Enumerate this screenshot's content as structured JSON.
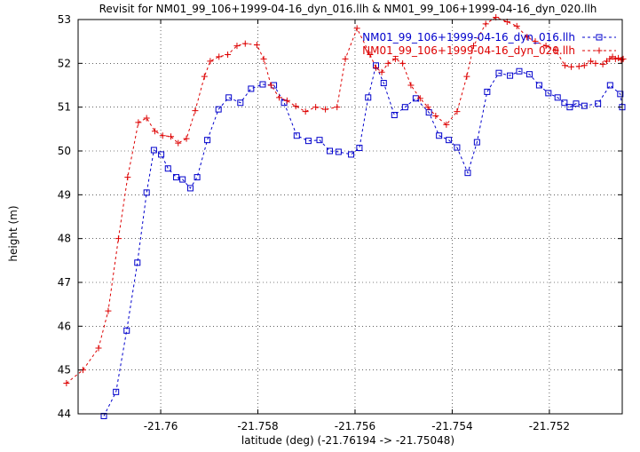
{
  "chart_data": {
    "type": "line",
    "title": "Revisit for NM01_99_106+1999-04-16_dyn_016.llh & NM01_99_106+1999-04-16_dyn_020.llh",
    "xlabel": "latitude (deg) (-21.76194 -> -21.75048)",
    "ylabel": "height (m)",
    "xlim": [
      -21.7617,
      -21.7505
    ],
    "ylim": [
      44,
      53
    ],
    "grid": true,
    "legend_position": "top-right",
    "x_ticks": [
      -21.76,
      -21.758,
      -21.756,
      -21.754,
      -21.752
    ],
    "x_tick_labels": [
      "-21.76",
      "-21.758",
      "-21.756",
      "-21.754",
      "-21.752"
    ],
    "y_ticks": [
      44,
      45,
      46,
      47,
      48,
      49,
      50,
      51,
      52,
      53
    ],
    "y_tick_labels": [
      "44",
      "45",
      "46",
      "47",
      "48",
      "49",
      "50",
      "51",
      "52",
      "53"
    ],
    "series": [
      {
        "name": "NM01_99_106+1999-04-16_dyn_016.llh",
        "color": "#0000cc",
        "marker": "square",
        "x": [
          -21.76117,
          -21.76092,
          -21.7607,
          -21.76048,
          -21.76029,
          -21.76014,
          -21.75999,
          -21.75985,
          -21.75968,
          -21.75955,
          -21.75939,
          -21.75925,
          -21.75904,
          -21.75881,
          -21.7586,
          -21.75836,
          -21.75814,
          -21.7579,
          -21.75767,
          -21.75746,
          -21.7572,
          -21.75696,
          -21.75673,
          -21.75652,
          -21.75634,
          -21.75608,
          -21.75591,
          -21.75573,
          -21.75557,
          -21.75541,
          -21.75519,
          -21.75497,
          -21.75475,
          -21.75448,
          -21.75427,
          -21.75407,
          -21.7539,
          -21.75368,
          -21.75349,
          -21.75328,
          -21.75304,
          -21.75281,
          -21.75262,
          -21.75241,
          -21.75221,
          -21.75202,
          -21.75183,
          -21.75169,
          -21.75158,
          -21.75145,
          -21.75128,
          -21.751,
          -21.75075,
          -21.75054,
          -21.7505
        ],
        "y": [
          43.95,
          44.5,
          45.9,
          47.45,
          49.05,
          50.02,
          49.92,
          49.6,
          49.4,
          49.35,
          49.15,
          49.4,
          50.25,
          50.95,
          51.22,
          51.1,
          51.42,
          51.52,
          51.5,
          51.1,
          50.35,
          50.23,
          50.25,
          50.0,
          49.98,
          49.92,
          50.07,
          51.22,
          51.95,
          51.55,
          50.82,
          51.0,
          51.2,
          50.88,
          50.35,
          50.25,
          50.08,
          49.5,
          50.2,
          51.35,
          51.78,
          51.72,
          51.82,
          51.75,
          51.5,
          51.32,
          51.22,
          51.1,
          51.0,
          51.08,
          51.03,
          51.08,
          51.5,
          51.3,
          51.0
        ]
      },
      {
        "name": "NM01_99_106+1999-04-16_dyn_020.llh",
        "color": "#dd0000",
        "marker": "plus",
        "x": [
          -21.76194,
          -21.7616,
          -21.76128,
          -21.76108,
          -21.76087,
          -21.76068,
          -21.76046,
          -21.76029,
          -21.76012,
          -21.75996,
          -21.75979,
          -21.75964,
          -21.75947,
          -21.75929,
          -21.7591,
          -21.75898,
          -21.7588,
          -21.75862,
          -21.75843,
          -21.75826,
          -21.75802,
          -21.75788,
          -21.75773,
          -21.75756,
          -21.7574,
          -21.75722,
          -21.75702,
          -21.75681,
          -21.75661,
          -21.75637,
          -21.7562,
          -21.75596,
          -21.75569,
          -21.75557,
          -21.75545,
          -21.75532,
          -21.75517,
          -21.75502,
          -21.75485,
          -21.75466,
          -21.7545,
          -21.75434,
          -21.75412,
          -21.7539,
          -21.7537,
          -21.75356,
          -21.75331,
          -21.7531,
          -21.75287,
          -21.75267,
          -21.75246,
          -21.75229,
          -21.75207,
          -21.75187,
          -21.75168,
          -21.75155,
          -21.75139,
          -21.75128,
          -21.75115,
          -21.75105,
          -21.7509,
          -21.75082,
          -21.75076,
          -21.7507,
          -21.75064,
          -21.75058,
          -21.75052,
          -21.75048
        ],
        "y": [
          44.7,
          45.0,
          45.5,
          46.35,
          48.0,
          49.4,
          50.65,
          50.75,
          50.45,
          50.35,
          50.33,
          50.18,
          50.28,
          50.92,
          51.7,
          52.05,
          52.15,
          52.2,
          52.4,
          52.45,
          52.42,
          52.1,
          51.5,
          51.22,
          51.15,
          51.02,
          50.9,
          51.0,
          50.95,
          51.0,
          52.1,
          52.8,
          52.2,
          51.9,
          51.8,
          52.0,
          52.1,
          52.0,
          51.5,
          51.2,
          51.0,
          50.8,
          50.6,
          50.9,
          51.7,
          52.4,
          52.9,
          53.05,
          52.95,
          52.85,
          52.6,
          52.5,
          52.4,
          52.3,
          51.95,
          51.92,
          51.93,
          51.95,
          52.05,
          52.0,
          51.98,
          52.05,
          52.1,
          52.15,
          52.1,
          52.12,
          52.08,
          52.1
        ]
      }
    ]
  }
}
